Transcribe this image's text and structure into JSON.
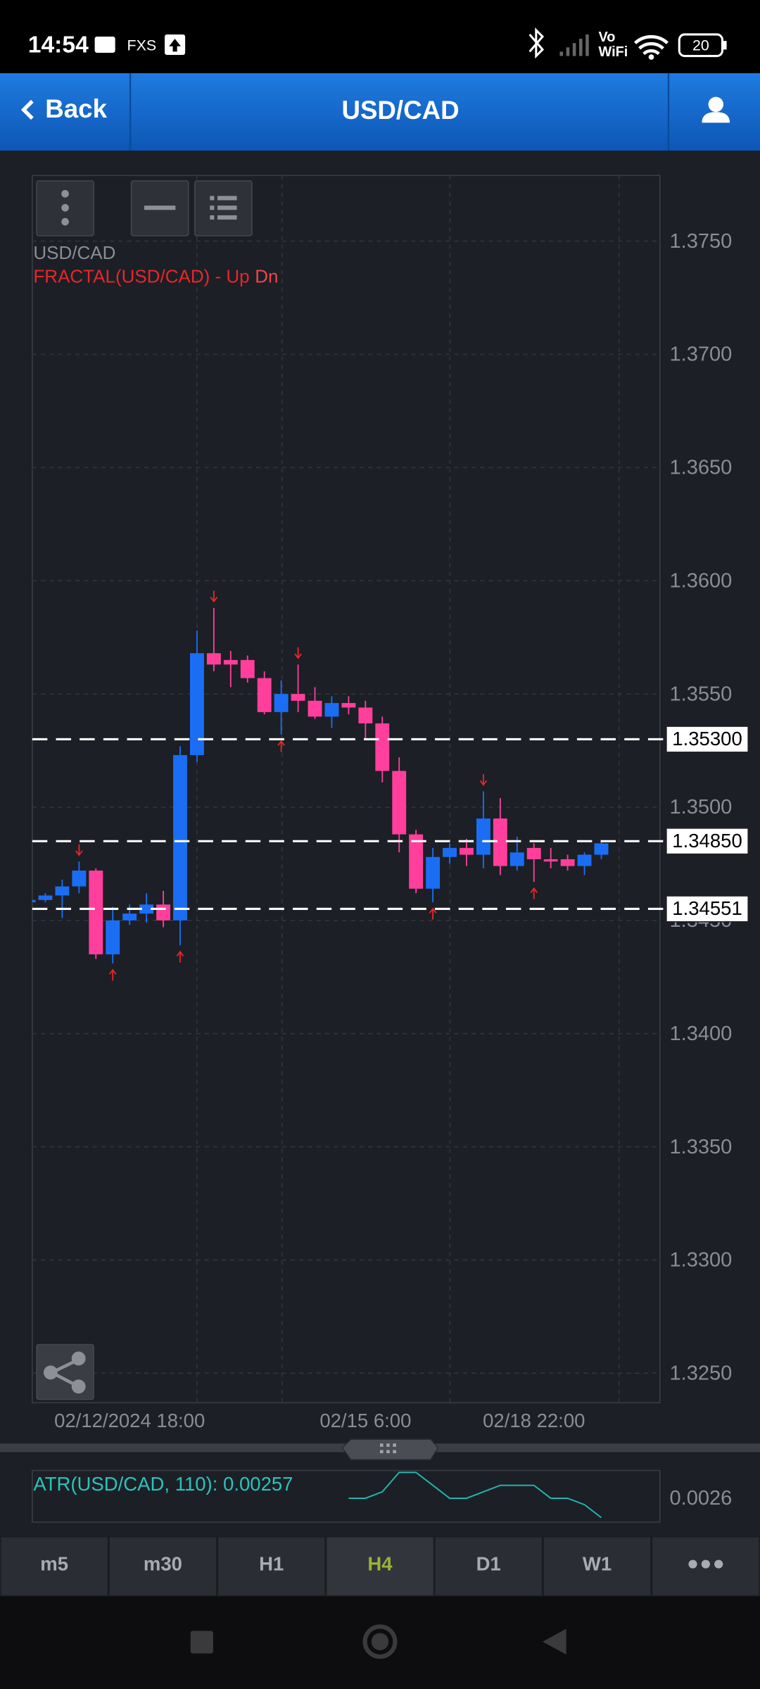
{
  "status_bar": {
    "time": "14:54",
    "carrier": "FXS",
    "vo": "Vo",
    "wifi": "WiFi",
    "battery": "20"
  },
  "header": {
    "back": "Back",
    "title": "USD/CAD"
  },
  "chart_data": [
    {
      "type": "candlestick",
      "legend": "USD/CAD",
      "indicator_label": "FRACTAL(USD/CAD) - Up",
      "indicator_down_label": "Dn",
      "categories": [
        null,
        null,
        null,
        null,
        null,
        null,
        "02/12/2024 18:00",
        null,
        null,
        null,
        null,
        null,
        null,
        null,
        null,
        null,
        null,
        null,
        null,
        null,
        "02/15 6:00",
        null,
        null,
        null,
        null,
        null,
        null,
        null,
        null,
        null,
        "02/18 22:00",
        null,
        null,
        null,
        null
      ],
      "open": [
        1.3458,
        1.3459,
        1.3461,
        1.3465,
        1.3472,
        1.3435,
        1.345,
        1.3453,
        1.3457,
        1.345,
        1.3523,
        1.3568,
        1.3565,
        1.3565,
        1.3557,
        1.3542,
        1.355,
        1.3547,
        1.354,
        1.3546,
        1.3544,
        1.3537,
        1.3516,
        1.3488,
        1.3464,
        1.3478,
        1.3482,
        1.3479,
        1.3495,
        1.3474,
        1.3482,
        1.3477,
        1.3477,
        1.3474,
        1.3479
      ],
      "high": [
        1.346,
        1.3462,
        1.3468,
        1.3476,
        1.3473,
        1.3456,
        1.3457,
        1.3462,
        1.3463,
        1.3527,
        1.3578,
        1.3588,
        1.3569,
        1.3567,
        1.356,
        1.3556,
        1.3563,
        1.3553,
        1.3549,
        1.3549,
        1.3547,
        1.354,
        1.3522,
        1.349,
        1.3482,
        1.3484,
        1.3486,
        1.3507,
        1.3504,
        1.3487,
        1.3484,
        1.3482,
        1.3479,
        1.348,
        1.3485
      ],
      "low": [
        1.3457,
        1.3458,
        1.3451,
        1.3462,
        1.3433,
        1.3431,
        1.3448,
        1.3449,
        1.3447,
        1.3439,
        1.352,
        1.356,
        1.3553,
        1.3555,
        1.3541,
        1.3532,
        1.3542,
        1.3539,
        1.3535,
        1.3541,
        1.353,
        1.3511,
        1.348,
        1.3462,
        1.3458,
        1.3475,
        1.3474,
        1.3473,
        1.347,
        1.3472,
        1.3467,
        1.3473,
        1.3472,
        1.347,
        1.3477
      ],
      "close": [
        1.3459,
        1.3461,
        1.3465,
        1.3472,
        1.3435,
        1.345,
        1.3453,
        1.3457,
        1.345,
        1.3523,
        1.3568,
        1.3563,
        1.3563,
        1.3557,
        1.3542,
        1.355,
        1.3547,
        1.354,
        1.3546,
        1.3544,
        1.3537,
        1.3516,
        1.3488,
        1.3464,
        1.3478,
        1.3482,
        1.3479,
        1.3495,
        1.3474,
        1.348,
        1.3477,
        1.3476,
        1.3474,
        1.3479,
        1.3484
      ],
      "up_color": "#1b6ef3",
      "down_color": "#ff3f9b",
      "fractal_up": [
        null,
        null,
        null,
        1.3476,
        null,
        null,
        null,
        null,
        null,
        null,
        null,
        1.3588,
        null,
        null,
        null,
        null,
        1.3563,
        null,
        null,
        null,
        null,
        null,
        null,
        null,
        null,
        null,
        null,
        1.3507,
        null,
        null,
        null,
        null,
        null,
        null,
        null
      ],
      "fractal_down": [
        null,
        null,
        null,
        null,
        null,
        1.3431,
        null,
        null,
        null,
        1.3439,
        null,
        null,
        null,
        null,
        null,
        1.3532,
        null,
        null,
        null,
        null,
        null,
        null,
        null,
        null,
        1.3458,
        null,
        null,
        null,
        null,
        null,
        1.3467,
        null,
        null,
        null,
        null
      ],
      "fractal_color": "#e8262a",
      "ylim": [
        1.3237,
        1.3779
      ],
      "yticks": [
        {
          "value": 1.325,
          "label": "1.3250"
        },
        {
          "value": 1.33,
          "label": "1.3300"
        },
        {
          "value": 1.335,
          "label": "1.3350"
        },
        {
          "value": 1.34,
          "label": "1.3400"
        },
        {
          "value": 1.345,
          "label": "1.3450"
        },
        {
          "value": 1.35,
          "label": "1.3500"
        },
        {
          "value": 1.355,
          "label": "1.3550"
        },
        {
          "value": 1.36,
          "label": "1.3600"
        },
        {
          "value": 1.365,
          "label": "1.3650"
        },
        {
          "value": 1.37,
          "label": "1.3700"
        },
        {
          "value": 1.375,
          "label": "1.3750"
        }
      ],
      "hlines": [
        {
          "value": 1.353,
          "label": "1.35300"
        },
        {
          "value": 1.3485,
          "label": "1.34850"
        },
        {
          "value": 1.34551,
          "label": "1.34551"
        }
      ],
      "grid": true
    },
    {
      "type": "line",
      "title": "ATR(USD/CAD, 110): 0.00257",
      "color": "#1fb5ad",
      "values": [
        null,
        null,
        null,
        null,
        null,
        null,
        null,
        null,
        null,
        null,
        null,
        null,
        null,
        null,
        null,
        null,
        null,
        null,
        null,
        0.0026,
        0.0026,
        0.00261,
        0.00264,
        0.00264,
        0.00262,
        0.0026,
        0.0026,
        0.00261,
        0.00262,
        0.00262,
        0.00262,
        0.0026,
        0.0026,
        0.00259,
        0.00257
      ],
      "ylim": [
        0.002563,
        0.002643
      ],
      "yticks": [
        0.0026
      ]
    }
  ],
  "timeframes": [
    "m5",
    "m30",
    "H1",
    "H4",
    "D1",
    "W1"
  ],
  "active_timeframe_index": 3
}
